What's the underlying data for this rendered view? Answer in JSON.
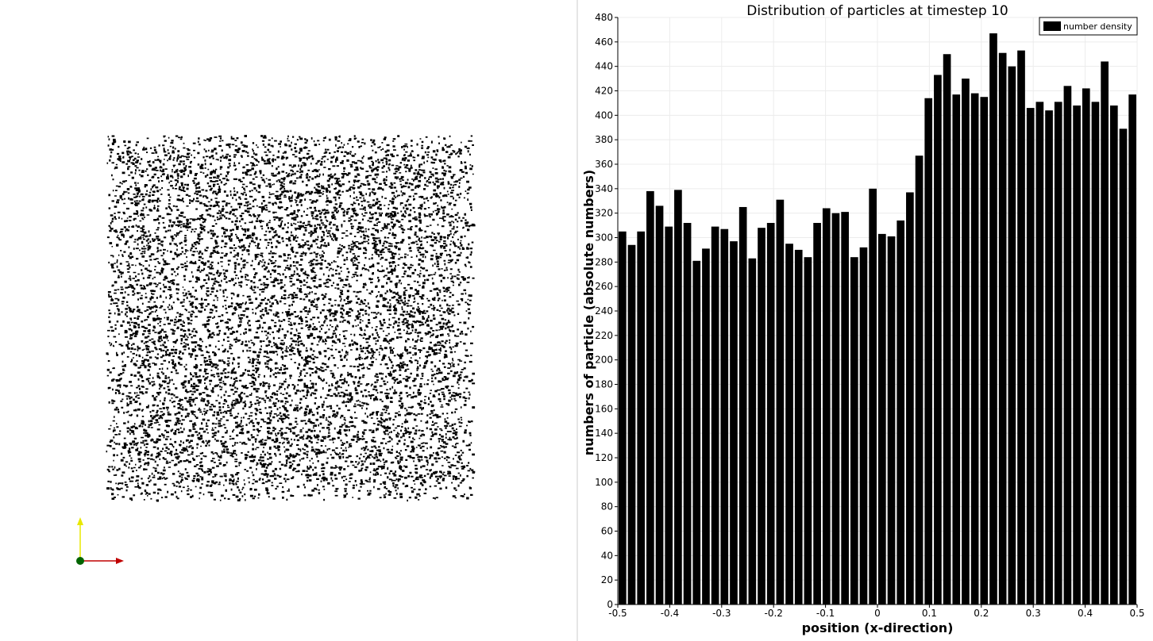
{
  "left_view": {
    "scatter_color": "#000000",
    "axes_widget": {
      "y_axis_color": "#e8e800",
      "x_axis_color": "#c00000",
      "origin_color": "#006400"
    }
  },
  "chart_data": {
    "type": "bar",
    "title": "Distribution of particles at timestep 10",
    "xlabel": "position (x-direction)",
    "ylabel": "numbers of particle (absolute numbers)",
    "xlim": [
      -0.5,
      0.5
    ],
    "ylim": [
      0,
      480
    ],
    "x_ticks": [
      "-0.5",
      "-0.4",
      "-0.3",
      "-0.2",
      "-0.1",
      "0",
      "0.1",
      "0.2",
      "0.3",
      "0.4",
      "0.5"
    ],
    "y_ticks": [
      "0",
      "20",
      "40",
      "60",
      "80",
      "100",
      "120",
      "140",
      "160",
      "180",
      "200",
      "220",
      "240",
      "260",
      "280",
      "300",
      "320",
      "340",
      "360",
      "380",
      "400",
      "420",
      "440",
      "460",
      "480"
    ],
    "grid": true,
    "legend_position": "top-right",
    "bar_color": "#000000",
    "series": [
      {
        "name": "number density",
        "values": [
          305,
          294,
          305,
          338,
          326,
          309,
          339,
          312,
          281,
          291,
          309,
          307,
          297,
          325,
          283,
          308,
          312,
          331,
          295,
          290,
          284,
          312,
          324,
          320,
          321,
          284,
          292,
          340,
          303,
          301,
          314,
          337,
          367,
          414,
          433,
          450,
          417,
          430,
          418,
          415,
          467,
          451,
          440,
          453,
          406,
          411,
          404,
          411,
          424,
          408,
          422,
          411,
          444,
          408,
          389,
          417
        ]
      }
    ]
  }
}
